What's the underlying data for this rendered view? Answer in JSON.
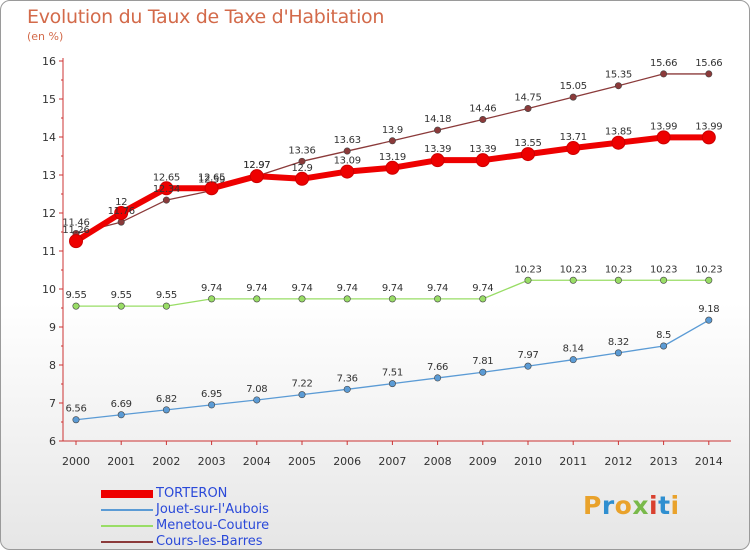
{
  "title": "Evolution du Taux de Taxe d'Habitation",
  "subtitle": "(en %)",
  "logo": {
    "letters": [
      "P",
      "r",
      "o",
      "x",
      "i",
      "t",
      "i"
    ],
    "colors": [
      "#e9a22b",
      "#2f8fd0",
      "#e9a22b",
      "#79b94a",
      "#d9412f",
      "#2f8fd0",
      "#e9a22b"
    ]
  },
  "chart_data": {
    "type": "line",
    "x": [
      "2000",
      "2001",
      "2002",
      "2003",
      "2004",
      "2005",
      "2006",
      "2007",
      "2008",
      "2009",
      "2010",
      "2011",
      "2012",
      "2013",
      "2014"
    ],
    "ylim": [
      6,
      16
    ],
    "yticks": [
      "6",
      "7",
      "8",
      "9",
      "10",
      "11",
      "12",
      "13",
      "14",
      "15",
      "16"
    ],
    "grid": false,
    "legend_position": "bottom",
    "series": [
      {
        "name": "TORTERON",
        "color": "#ee0000",
        "values": [
          11.26,
          12,
          12.65,
          12.65,
          12.97,
          12.9,
          13.09,
          13.19,
          13.39,
          13.39,
          13.55,
          13.71,
          13.85,
          13.99,
          13.99
        ],
        "labels": [
          "11.26",
          "12",
          "12.65",
          "12.65",
          "12.97",
          "12.9",
          "13.09",
          "13.19",
          "13.39",
          "13.39",
          "13.55",
          "13.71",
          "13.85",
          "13.99",
          "13.99"
        ]
      },
      {
        "name": "Jouet-sur-l'Aubois",
        "color": "#5b9bd5",
        "values": [
          6.56,
          6.69,
          6.82,
          6.95,
          7.08,
          7.22,
          7.36,
          7.51,
          7.66,
          7.81,
          7.97,
          8.14,
          8.32,
          8.5,
          9.18
        ],
        "labels": [
          "6.56",
          "6.69",
          "6.82",
          "6.95",
          "7.08",
          "7.22",
          "7.36",
          "7.51",
          "7.66",
          "7.81",
          "7.97",
          "8.14",
          "8.32",
          "8.5",
          "9.18"
        ]
      },
      {
        "name": "Menetou-Couture",
        "color": "#99dd66",
        "values": [
          9.55,
          9.55,
          9.55,
          9.74,
          9.74,
          9.74,
          9.74,
          9.74,
          9.74,
          9.74,
          10.23,
          10.23,
          10.23,
          10.23,
          10.23
        ],
        "labels": [
          "9.55",
          "9.55",
          "9.55",
          "9.74",
          "9.74",
          "9.74",
          "9.74",
          "9.74",
          "9.74",
          "9.74",
          "10.23",
          "10.23",
          "10.23",
          "10.23",
          "10.23"
        ]
      },
      {
        "name": "Cours-les-Barres",
        "color": "#8b3a3a",
        "values": [
          11.46,
          11.76,
          12.34,
          12.59,
          12.97,
          13.36,
          13.63,
          13.9,
          14.18,
          14.46,
          14.75,
          15.05,
          15.35,
          15.66,
          15.66
        ],
        "labels": [
          "11.46",
          "11.76",
          "12.34",
          "12.59",
          "12.97",
          "13.36",
          "13.63",
          "13.9",
          "14.18",
          "14.46",
          "14.75",
          "15.05",
          "15.35",
          "15.66",
          "15.66"
        ]
      }
    ]
  }
}
